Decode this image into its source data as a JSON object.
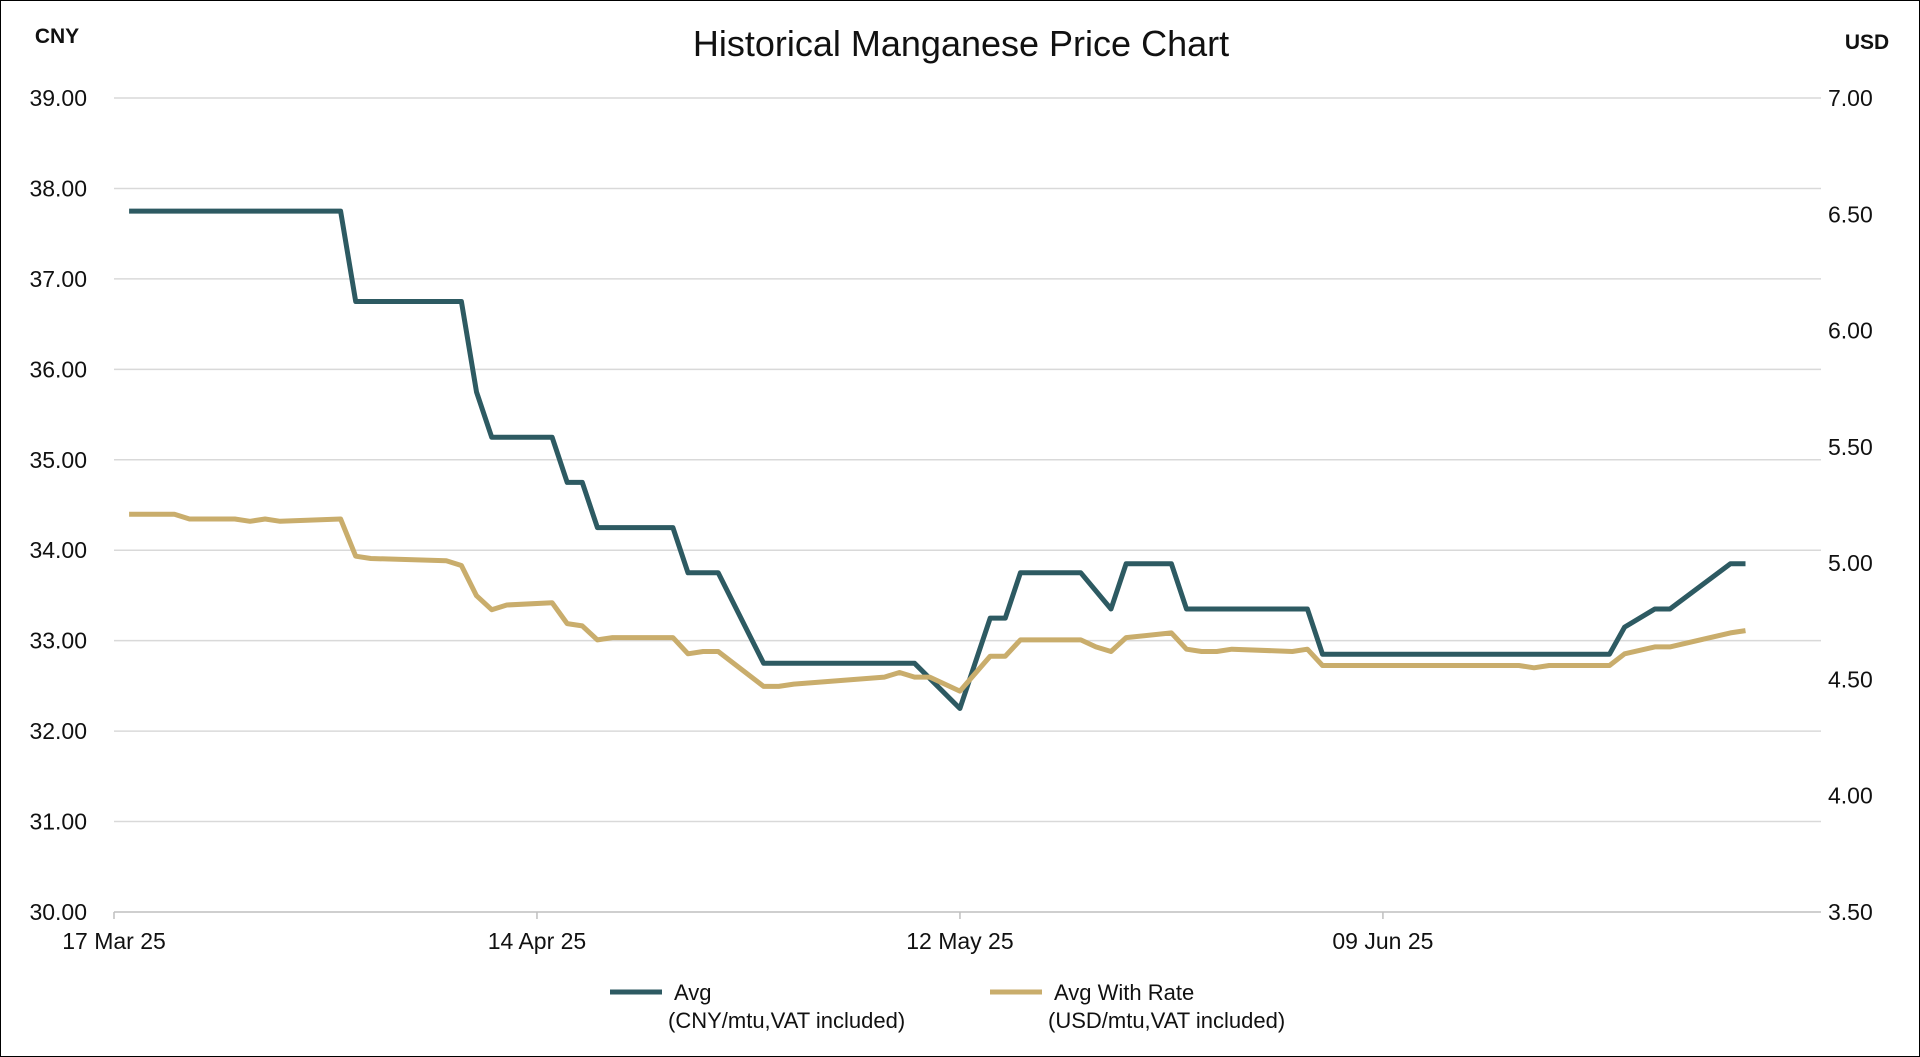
{
  "chart_data": {
    "type": "line",
    "title": "Historical Manganese Price Chart",
    "left_axis_unit": "CNY",
    "right_axis_unit": "USD",
    "y_left": {
      "min": 30,
      "max": 39,
      "step": 1,
      "ticks": [
        "39.00",
        "38.00",
        "37.00",
        "36.00",
        "35.00",
        "34.00",
        "33.00",
        "32.00",
        "31.00",
        "30.00"
      ]
    },
    "y_right": {
      "min": 3.5,
      "max": 7.0,
      "step": 0.5,
      "ticks": [
        "7.00",
        "6.50",
        "6.00",
        "5.50",
        "5.00",
        "4.50",
        "4.00",
        "3.50"
      ]
    },
    "x_range": [
      "2025-03-17",
      "2025-07-08"
    ],
    "x_ticks": [
      {
        "date": "2025-03-17",
        "label": "17 Mar 25"
      },
      {
        "date": "2025-04-14",
        "label": "14 Apr 25"
      },
      {
        "date": "2025-05-12",
        "label": "12 May 25"
      },
      {
        "date": "2025-06-09",
        "label": "09 Jun 25"
      }
    ],
    "grid": true,
    "legend_position": "bottom",
    "series": [
      {
        "name": "Avg",
        "subtitle": "(CNY/mtu,VAT included)",
        "axis": "left",
        "color": "#2d5a62",
        "points": [
          [
            "2025-03-18",
            37.75
          ],
          [
            "2025-04-01",
            37.75
          ],
          [
            "2025-04-02",
            36.75
          ],
          [
            "2025-04-09",
            36.75
          ],
          [
            "2025-04-10",
            35.75
          ],
          [
            "2025-04-11",
            35.25
          ],
          [
            "2025-04-15",
            35.25
          ],
          [
            "2025-04-16",
            34.75
          ],
          [
            "2025-04-17",
            34.75
          ],
          [
            "2025-04-18",
            34.25
          ],
          [
            "2025-04-23",
            34.25
          ],
          [
            "2025-04-24",
            33.75
          ],
          [
            "2025-04-26",
            33.75
          ],
          [
            "2025-04-29",
            32.75
          ],
          [
            "2025-05-09",
            32.75
          ],
          [
            "2025-05-12",
            32.25
          ],
          [
            "2025-05-14",
            33.25
          ],
          [
            "2025-05-15",
            33.25
          ],
          [
            "2025-05-16",
            33.75
          ],
          [
            "2025-05-20",
            33.75
          ],
          [
            "2025-05-22",
            33.35
          ],
          [
            "2025-05-23",
            33.85
          ],
          [
            "2025-05-26",
            33.85
          ],
          [
            "2025-05-27",
            33.35
          ],
          [
            "2025-06-04",
            33.35
          ],
          [
            "2025-06-05",
            32.85
          ],
          [
            "2025-06-24",
            32.85
          ],
          [
            "2025-06-25",
            33.15
          ],
          [
            "2025-06-27",
            33.35
          ],
          [
            "2025-06-28",
            33.35
          ],
          [
            "2025-07-02",
            33.85
          ],
          [
            "2025-07-03",
            33.85
          ]
        ]
      },
      {
        "name": "Avg With Rate",
        "subtitle": "(USD/mtu,VAT included)",
        "axis": "right",
        "color": "#c9ad6c",
        "points": [
          [
            "2025-03-18",
            5.21
          ],
          [
            "2025-03-21",
            5.21
          ],
          [
            "2025-03-22",
            5.19
          ],
          [
            "2025-03-25",
            5.19
          ],
          [
            "2025-03-26",
            5.18
          ],
          [
            "2025-03-27",
            5.19
          ],
          [
            "2025-03-28",
            5.18
          ],
          [
            "2025-04-01",
            5.19
          ],
          [
            "2025-04-02",
            5.03
          ],
          [
            "2025-04-03",
            5.02
          ],
          [
            "2025-04-08",
            5.01
          ],
          [
            "2025-04-09",
            4.99
          ],
          [
            "2025-04-10",
            4.86
          ],
          [
            "2025-04-11",
            4.8
          ],
          [
            "2025-04-12",
            4.82
          ],
          [
            "2025-04-15",
            4.83
          ],
          [
            "2025-04-16",
            4.74
          ],
          [
            "2025-04-17",
            4.73
          ],
          [
            "2025-04-18",
            4.67
          ],
          [
            "2025-04-19",
            4.68
          ],
          [
            "2025-04-23",
            4.68
          ],
          [
            "2025-04-24",
            4.61
          ],
          [
            "2025-04-25",
            4.62
          ],
          [
            "2025-04-26",
            4.62
          ],
          [
            "2025-04-29",
            4.47
          ],
          [
            "2025-04-30",
            4.47
          ],
          [
            "2025-05-01",
            4.48
          ],
          [
            "2025-05-07",
            4.51
          ],
          [
            "2025-05-08",
            4.53
          ],
          [
            "2025-05-09",
            4.51
          ],
          [
            "2025-05-10",
            4.51
          ],
          [
            "2025-05-12",
            4.45
          ],
          [
            "2025-05-14",
            4.6
          ],
          [
            "2025-05-15",
            4.6
          ],
          [
            "2025-05-16",
            4.67
          ],
          [
            "2025-05-20",
            4.67
          ],
          [
            "2025-05-21",
            4.64
          ],
          [
            "2025-05-22",
            4.62
          ],
          [
            "2025-05-23",
            4.68
          ],
          [
            "2025-05-26",
            4.7
          ],
          [
            "2025-05-27",
            4.63
          ],
          [
            "2025-05-28",
            4.62
          ],
          [
            "2025-05-29",
            4.62
          ],
          [
            "2025-05-30",
            4.63
          ],
          [
            "2025-06-03",
            4.62
          ],
          [
            "2025-06-04",
            4.63
          ],
          [
            "2025-06-05",
            4.56
          ],
          [
            "2025-06-18",
            4.56
          ],
          [
            "2025-06-19",
            4.55
          ],
          [
            "2025-06-20",
            4.56
          ],
          [
            "2025-06-24",
            4.56
          ],
          [
            "2025-06-25",
            4.61
          ],
          [
            "2025-06-27",
            4.64
          ],
          [
            "2025-06-28",
            4.64
          ],
          [
            "2025-07-02",
            4.7
          ],
          [
            "2025-07-03",
            4.71
          ]
        ]
      }
    ]
  }
}
